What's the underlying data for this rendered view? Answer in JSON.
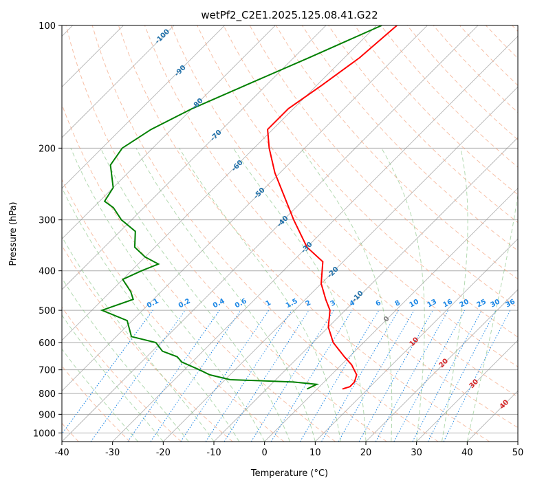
{
  "chart_data": {
    "type": "line",
    "title": "wetPf2_C2E1.2025.125.08.41.G22",
    "xlabel": "Temperature (°C)",
    "ylabel": "Pressure (hPa)",
    "xlim": [
      -40,
      50
    ],
    "ylim": [
      1050,
      100
    ],
    "y_scale": "log",
    "skew": "skew-T log-p diagram",
    "x_ticks": [
      "-40",
      "-30",
      "-20",
      "-10",
      "0",
      "10",
      "20",
      "30",
      "40",
      "50"
    ],
    "y_ticks": [
      "100",
      "200",
      "300",
      "400",
      "500",
      "600",
      "700",
      "800",
      "900",
      "1000"
    ],
    "grid": true,
    "series": [
      {
        "role": "temperature",
        "color": "#ff0000",
        "points": [
          [
            -56,
            100
          ],
          [
            -57,
            120
          ],
          [
            -59,
            140
          ],
          [
            -61,
            160
          ],
          [
            -61,
            180
          ],
          [
            -57,
            200
          ],
          [
            -51,
            230
          ],
          [
            -45,
            260
          ],
          [
            -38,
            300
          ],
          [
            -30,
            350
          ],
          [
            -24,
            380
          ],
          [
            -20,
            430
          ],
          [
            -16,
            470
          ],
          [
            -13,
            500
          ],
          [
            -10,
            550
          ],
          [
            -6,
            600
          ],
          [
            -1,
            650
          ],
          [
            2,
            680
          ],
          [
            5,
            720
          ],
          [
            6,
            750
          ],
          [
            6,
            770
          ],
          [
            5,
            780
          ]
        ]
      },
      {
        "role": "dewpoint",
        "color": "#008000",
        "points": [
          [
            -59,
            100
          ],
          [
            -67,
            120
          ],
          [
            -74,
            140
          ],
          [
            -80,
            160
          ],
          [
            -84,
            180
          ],
          [
            -86,
            200
          ],
          [
            -85,
            220
          ],
          [
            -80,
            250
          ],
          [
            -79,
            270
          ],
          [
            -76,
            280
          ],
          [
            -72,
            300
          ],
          [
            -67,
            320
          ],
          [
            -64,
            350
          ],
          [
            -60,
            370
          ],
          [
            -56,
            385
          ],
          [
            -58,
            400
          ],
          [
            -60,
            420
          ],
          [
            -56,
            450
          ],
          [
            -54,
            470
          ],
          [
            -58,
            500
          ],
          [
            -51,
            530
          ],
          [
            -47,
            580
          ],
          [
            -41,
            600
          ],
          [
            -38,
            630
          ],
          [
            -34,
            650
          ],
          [
            -32,
            670
          ],
          [
            -27,
            700
          ],
          [
            -24,
            720
          ],
          [
            -19,
            740
          ],
          [
            -12,
            745
          ],
          [
            -6,
            750
          ],
          [
            -1,
            760
          ],
          [
            -2,
            780
          ]
        ]
      }
    ],
    "dry_adiabat_labels": [
      "-100",
      "-90",
      "-80",
      "-70",
      "-60",
      "-50",
      "-40",
      "-30",
      "-20",
      "-10",
      "0",
      "10",
      "20",
      "30",
      "40"
    ],
    "mixing_ratio_labels": [
      "0.1",
      "0.2",
      "0.4",
      "0.6",
      "1",
      "1.5",
      "2",
      "3",
      "4",
      "6",
      "8",
      "10",
      "13",
      "16",
      "20",
      "25",
      "30",
      "36"
    ],
    "colors": {
      "dry_adiabat": "#f4a582",
      "moist_adiabat": "#7fbf7b",
      "mixing_ratio": "#1e88e5",
      "isotherm": "#888888",
      "isobar": "#aaaaaa",
      "cold_label": "#1f6fa8",
      "warm_label": "#d62728",
      "zero_label": "#7f7f7f"
    }
  }
}
